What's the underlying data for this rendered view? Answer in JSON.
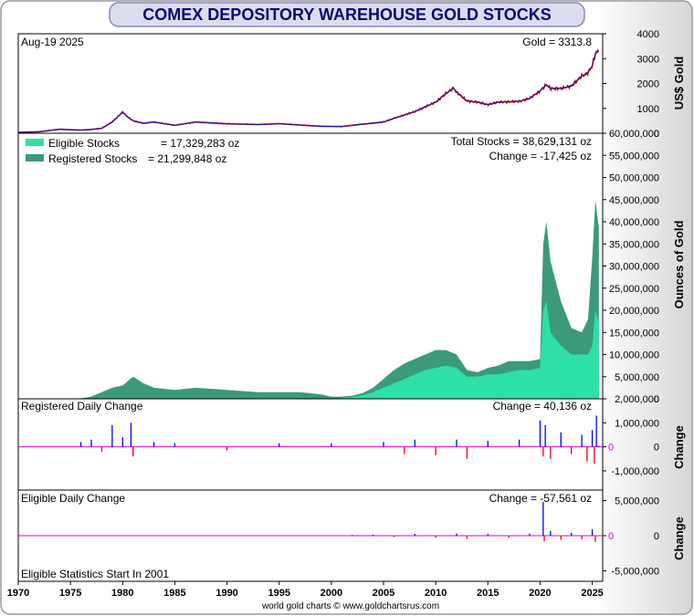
{
  "title": "COMEX DEPOSITORY WAREHOUSE GOLD STOCKS",
  "date_label": "Aug-19  2025",
  "credit": "world gold charts © www.goldchartsrus.com",
  "colors": {
    "eligible": "#2de0a8",
    "registered": "#3a9a7a",
    "gold_line": "#1a1aa0",
    "gold_down": "#cc0000",
    "positive": "#0000ee",
    "negative": "#ee0000",
    "zero_line": "#dd00dd",
    "title_bg": "#d8d8ee"
  },
  "chart_data": [
    {
      "type": "line",
      "name": "gold-price",
      "label": "Gold = 3313.8",
      "ylabel": "US$ Gold",
      "ylim": [
        0,
        4000
      ],
      "yticks": [
        0,
        1000,
        2000,
        3000,
        4000
      ],
      "x": [
        1970,
        1972,
        1974,
        1975,
        1976,
        1977,
        1978,
        1979,
        1980,
        1980.5,
        1981,
        1982,
        1983,
        1985,
        1987,
        1990,
        1993,
        1995,
        1997,
        1999,
        2001,
        2003,
        2005,
        2006,
        2008,
        2010,
        2011,
        2011.7,
        2012,
        2013,
        2014,
        2015,
        2016,
        2018,
        2019,
        2020,
        2020.6,
        2021,
        2022,
        2023,
        2024,
        2024.5,
        2025,
        2025.3,
        2025.63
      ],
      "y": [
        35,
        60,
        160,
        140,
        125,
        150,
        200,
        450,
        850,
        650,
        500,
        400,
        450,
        320,
        450,
        380,
        350,
        385,
        330,
        280,
        270,
        365,
        450,
        600,
        870,
        1250,
        1600,
        1820,
        1650,
        1300,
        1250,
        1150,
        1250,
        1280,
        1400,
        1700,
        1950,
        1800,
        1800,
        1900,
        2300,
        2400,
        2700,
        3200,
        3313.8
      ]
    },
    {
      "type": "area",
      "name": "warehouse-stocks",
      "ylabel": "Ounces of Gold",
      "ylim": [
        0,
        60000000
      ],
      "yticks": [
        0,
        5000000,
        10000000,
        15000000,
        20000000,
        25000000,
        30000000,
        35000000,
        40000000,
        45000000,
        50000000,
        55000000,
        60000000
      ],
      "yticklabels": [
        "0",
        "5,000,000",
        "10,000,000",
        "15,000,000",
        "20,000,000",
        "25,000,000",
        "30,000,000",
        "35,000,000",
        "40,000,000",
        "45,000,000",
        "50,000,000",
        "55,000,000",
        "60,000,000"
      ],
      "x": [
        1970,
        1975,
        1976,
        1977,
        1978,
        1979,
        1980,
        1981,
        1982,
        1983,
        1985,
        1987,
        1990,
        1993,
        1995,
        1997,
        1999,
        2000,
        2001,
        2002,
        2003,
        2004,
        2005,
        2006,
        2007,
        2008,
        2009,
        2010,
        2011,
        2012,
        2013,
        2014,
        2015,
        2016,
        2017,
        2018,
        2019,
        2020,
        2020.3,
        2020.6,
        2021,
        2022,
        2023,
        2024,
        2024.6,
        2025,
        2025.3,
        2025.63
      ],
      "series": [
        {
          "name": "Eligible Stocks",
          "legend": "Eligible Stocks",
          "value_label": "= 17,329,283 oz",
          "values": [
            0,
            0,
            0,
            0,
            0,
            0,
            0,
            0,
            0,
            0,
            0,
            0,
            0,
            0,
            0,
            0,
            0,
            0,
            200000,
            400000,
            800000,
            1500000,
            2500000,
            3500000,
            4500000,
            5500000,
            6500000,
            7000000,
            7500000,
            7000000,
            5000000,
            5000000,
            5500000,
            5500000,
            6000000,
            6500000,
            6500000,
            7000000,
            20000000,
            22000000,
            15000000,
            12000000,
            10000000,
            10000000,
            10000000,
            12000000,
            20000000,
            17329283
          ]
        },
        {
          "name": "Registered Stocks",
          "legend": "Registered Stocks",
          "value_label": "= 21,299,848 oz",
          "values": [
            0,
            0,
            100000,
            500000,
            1500000,
            2500000,
            3000000,
            5000000,
            3500000,
            2500000,
            2000000,
            2500000,
            2000000,
            1500000,
            1500000,
            1500000,
            1000000,
            500000,
            300000,
            300000,
            500000,
            1000000,
            2000000,
            3000000,
            3500000,
            3500000,
            3500000,
            4000000,
            3500000,
            3000000,
            1500000,
            1000000,
            1500000,
            2000000,
            2500000,
            2000000,
            2000000,
            2000000,
            15000000,
            18000000,
            16000000,
            10000000,
            6000000,
            5000000,
            8000000,
            20000000,
            25000000,
            21299848
          ]
        }
      ],
      "total_label": "Total Stocks = 38,629,131 oz",
      "change_label": "Change = -17,425 oz"
    },
    {
      "type": "bar",
      "name": "registered-daily-change",
      "label": "Registered Daily Change",
      "change_label": "Change = 40,136 oz",
      "ylabel": "Change",
      "ylim": [
        -1800000,
        2000000
      ],
      "yticks": [
        2000000,
        1000000,
        0,
        -1000000
      ],
      "yticklabels": [
        "2,000,000",
        "1,000,000",
        "0",
        "-1,000,000"
      ],
      "x": [
        1976,
        1977,
        1978,
        1979,
        1980,
        1980.8,
        1981,
        1983,
        1985,
        1990,
        1995,
        2000,
        2005,
        2007,
        2008,
        2010,
        2012,
        2013,
        2015,
        2018,
        2020,
        2020.3,
        2020.5,
        2021,
        2022,
        2023,
        2024,
        2024.5,
        2025,
        2025.2,
        2025.4,
        2025.63
      ],
      "values": [
        200000,
        300000,
        -200000,
        900000,
        400000,
        1000000,
        -400000,
        200000,
        150000,
        -150000,
        150000,
        150000,
        200000,
        -300000,
        300000,
        -350000,
        300000,
        -500000,
        250000,
        300000,
        1100000,
        -400000,
        900000,
        -500000,
        600000,
        -300000,
        500000,
        -600000,
        700000,
        -700000,
        1300000,
        40136
      ]
    },
    {
      "type": "bar",
      "name": "eligible-daily-change",
      "label": "Eligible Daily Change",
      "change_label": "Change = -57,561 oz",
      "note": "Eligible Statistics Start In 2001",
      "ylabel": "Change",
      "ylim": [
        -6500000,
        6500000
      ],
      "yticks": [
        5000000,
        0,
        -5000000
      ],
      "yticklabels": [
        "5,000,000",
        "0",
        "-5,000,000"
      ],
      "x": [
        2002,
        2004,
        2006,
        2008,
        2010,
        2012,
        2013,
        2015,
        2017,
        2019,
        2020.3,
        2020.4,
        2021,
        2022,
        2023,
        2024,
        2025,
        2025.3,
        2025.63
      ],
      "values": [
        100000,
        150000,
        -200000,
        250000,
        -300000,
        300000,
        -450000,
        250000,
        -300000,
        300000,
        4800000,
        -800000,
        700000,
        -600000,
        400000,
        -500000,
        900000,
        -900000,
        -57561
      ]
    }
  ],
  "x_axis": {
    "xlim": [
      1970,
      2026
    ],
    "ticks": [
      "1970",
      "1975",
      "1980",
      "1985",
      "1990",
      "1995",
      "2000",
      "2005",
      "2010",
      "2015",
      "2020",
      "2025"
    ]
  }
}
